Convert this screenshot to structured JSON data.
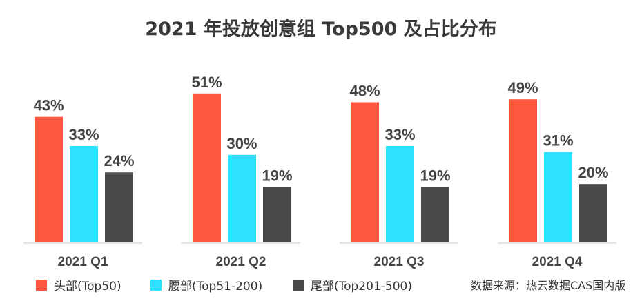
{
  "chart_data": {
    "type": "bar",
    "title": "2021 年投放创意组 Top500 及占比分布",
    "categories": [
      "2021 Q1",
      "2021 Q2",
      "2021 Q3",
      "2021 Q4"
    ],
    "series": [
      {
        "name": "头部(Top50)",
        "color": "#ff5640",
        "values": [
          43,
          51,
          48,
          49
        ]
      },
      {
        "name": "腰部(Top51-200)",
        "color": "#2de2fe",
        "values": [
          33,
          30,
          33,
          31
        ]
      },
      {
        "name": "尾部(Top201-500)",
        "color": "#4a4a4a",
        "values": [
          24,
          19,
          19,
          20
        ]
      }
    ],
    "value_format": "{v}%",
    "ylim": [
      0,
      60
    ],
    "grid": false,
    "legend": "bottom-left",
    "source": "数据来源：热云数据CAS国内版"
  }
}
